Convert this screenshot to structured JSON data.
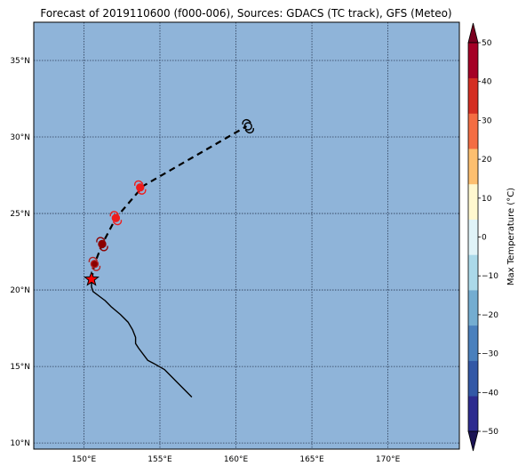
{
  "title": "Forecast of 2019110600 (f000-006), Sources: GDACS (TC track), GFS (Meteo)",
  "map": {
    "background_color": "#8fb4d9",
    "lon_range": [
      146.7,
      174.7
    ],
    "lat_range": [
      9.6,
      37.5
    ],
    "lon_ticks": [
      {
        "value": 150,
        "label": "150°E"
      },
      {
        "value": 155,
        "label": "155°E"
      },
      {
        "value": 160,
        "label": "160°E"
      },
      {
        "value": 165,
        "label": "165°E"
      },
      {
        "value": 170,
        "label": "170°E"
      }
    ],
    "lat_ticks": [
      {
        "value": 10,
        "label": "10°N"
      },
      {
        "value": 15,
        "label": "15°N"
      },
      {
        "value": 20,
        "label": "20°N"
      },
      {
        "value": 25,
        "label": "25°N"
      },
      {
        "value": 30,
        "label": "30°N"
      },
      {
        "value": 35,
        "label": "35°N"
      }
    ],
    "grid": true,
    "past_track": [
      [
        157.1,
        13.0
      ],
      [
        156.3,
        13.8
      ],
      [
        155.6,
        14.5
      ],
      [
        155.3,
        14.8
      ],
      [
        154.6,
        15.2
      ],
      [
        154.2,
        15.4
      ],
      [
        153.6,
        16.2
      ],
      [
        153.4,
        16.5
      ],
      [
        153.4,
        16.9
      ],
      [
        153.2,
        17.4
      ],
      [
        152.9,
        17.9
      ],
      [
        152.4,
        18.4
      ],
      [
        151.8,
        18.9
      ],
      [
        151.4,
        19.3
      ],
      [
        151.0,
        19.6
      ],
      [
        150.6,
        19.9
      ],
      [
        150.5,
        20.2
      ],
      [
        150.5,
        20.7
      ]
    ],
    "forecast_track": [
      [
        150.5,
        20.7
      ],
      [
        150.7,
        21.7
      ],
      [
        151.2,
        23.0
      ],
      [
        152.1,
        24.7
      ],
      [
        153.9,
        26.8
      ],
      [
        160.7,
        30.7
      ]
    ],
    "current_position": {
      "lon": 150.5,
      "lat": 20.7
    },
    "storm_points": [
      {
        "lon": 150.7,
        "lat": 21.7,
        "color": "#8b0000",
        "fill": "#8b0000",
        "outline": "#b22222"
      },
      {
        "lon": 151.2,
        "lat": 23.0,
        "color": "#8b0000",
        "fill": "#8b0000",
        "outline": "#8b0000"
      },
      {
        "lon": 152.1,
        "lat": 24.7,
        "color": "#ee1c1c",
        "fill": "#ee1c1c",
        "outline": "#ee1c1c"
      },
      {
        "lon": 153.7,
        "lat": 26.7,
        "color": "#ee1c1c",
        "fill": "#ee1c1c",
        "outline": "#ee1c1c"
      },
      {
        "lon": 160.8,
        "lat": 30.7,
        "color": "#000000",
        "fill": "none",
        "outline": "#000000"
      }
    ]
  },
  "colorbar": {
    "label": "Max Temperature (°C)",
    "min": -50,
    "max": 50,
    "ticks": [
      -50,
      -40,
      -30,
      -20,
      -10,
      0,
      10,
      20,
      30,
      40,
      50
    ],
    "tick_labels": [
      "−50",
      "−40",
      "−30",
      "−20",
      "−10",
      "0",
      "10",
      "20",
      "30",
      "40",
      "50"
    ],
    "colors": [
      "#2d2b8f",
      "#3358a6",
      "#4a80bd",
      "#74add1",
      "#abd9e9",
      "#e0f3f8",
      "#fff8cf",
      "#fdbf6f",
      "#f46d43",
      "#d42e22",
      "#a50026"
    ],
    "under_color": "#1b1454",
    "over_color": "#7a0020"
  }
}
